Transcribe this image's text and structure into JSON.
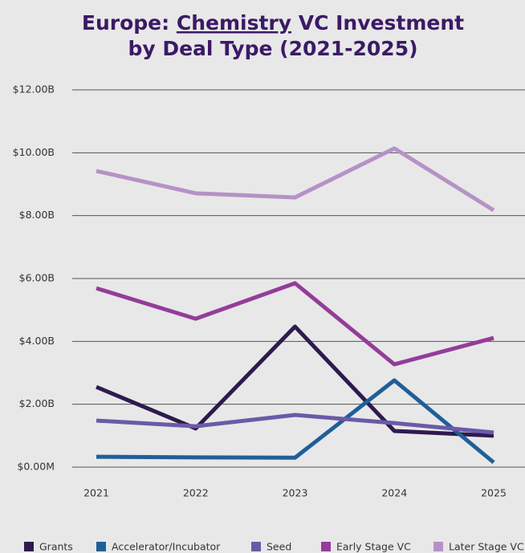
{
  "chart_data": {
    "type": "line",
    "title": [
      "Europe: ",
      "Chemistry",
      " VC Investment",
      "by Deal Type (2021-2025)"
    ],
    "categories": [
      "2021",
      "2022",
      "2023",
      "2024",
      "2025"
    ],
    "series": [
      {
        "name": "Grants",
        "color": "#2e1a4f",
        "values": [
          2.55,
          1.23,
          4.47,
          1.15,
          1.0
        ]
      },
      {
        "name": "Accelerator/Incubator",
        "color": "#1f5f99",
        "values": [
          0.33,
          0.31,
          0.3,
          2.76,
          0.15
        ]
      },
      {
        "name": "Seed",
        "color": "#6a5aa8",
        "values": [
          1.48,
          1.3,
          1.66,
          1.4,
          1.1
        ]
      },
      {
        "name": "Early Stage VC",
        "color": "#943c9a",
        "values": [
          5.69,
          4.72,
          5.85,
          3.27,
          4.11
        ]
      },
      {
        "name": "Later Stage VC",
        "color": "#b592c6",
        "values": [
          9.42,
          8.71,
          8.58,
          10.14,
          8.17
        ]
      }
    ],
    "ylim": [
      0,
      12
    ],
    "yticks": [
      {
        "value": 0,
        "label": "$0.00M"
      },
      {
        "value": 2,
        "label": "$2.00B"
      },
      {
        "value": 4,
        "label": "$4.00B"
      },
      {
        "value": 6,
        "label": "$6.00B"
      },
      {
        "value": 8,
        "label": "$8.00B"
      },
      {
        "value": 10,
        "label": "$10.00B"
      },
      {
        "value": 12,
        "label": "$12.00B"
      }
    ],
    "grid": true,
    "legend": "bottom"
  }
}
